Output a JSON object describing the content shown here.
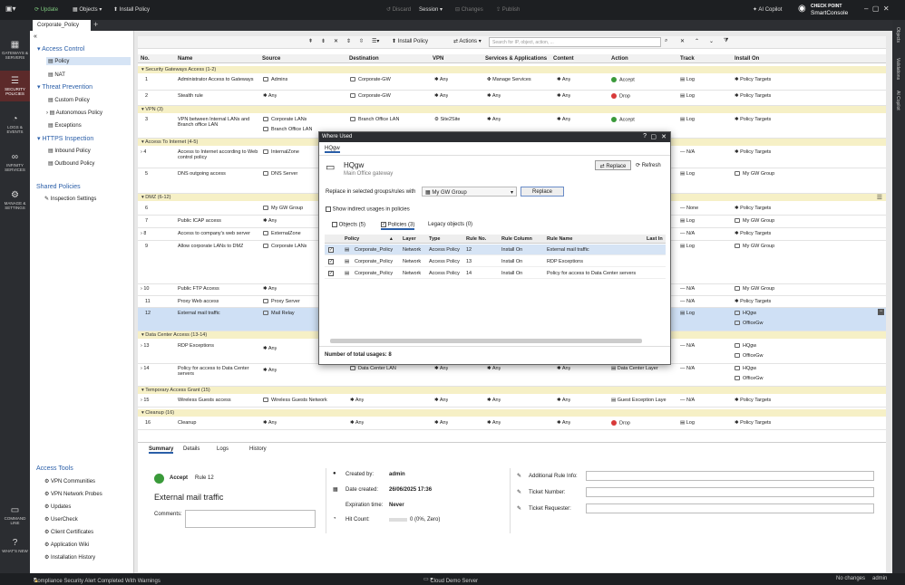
{
  "topbar": {
    "update": "Update",
    "objects": "Objects",
    "install_policy": "Install Policy",
    "discard": "Discard",
    "session": "Session",
    "changes": "Changes",
    "publish": "Publish",
    "ai_copilot": "AI Copilot",
    "brand_line1": "CHECK POINT",
    "brand_line2": "SmartConsole"
  },
  "tabs": {
    "active": "Corporate_Policy",
    "add": "+"
  },
  "leftnav": [
    {
      "label": "GATEWAYS & SERVERS",
      "icon": "gateways-icon"
    },
    {
      "label": "SECURITY POLICIES",
      "icon": "policies-icon"
    },
    {
      "label": "LOGS & EVENTS",
      "icon": "logs-icon"
    },
    {
      "label": "INFINITY SERVICES",
      "icon": "infinity-icon"
    },
    {
      "label": "MANAGE & SETTINGS",
      "icon": "manage-icon"
    },
    {
      "label": "COMMAND LINE",
      "icon": "command-line-icon"
    },
    {
      "label": "WHAT'S NEW",
      "icon": "whats-new-icon"
    }
  ],
  "rightbar": {
    "objects": "Objects",
    "validations": "Validations",
    "ai": "AI Copilot"
  },
  "sidebar": {
    "access_control": "Access Control",
    "policy": "Policy",
    "nat": "NAT",
    "threat_prevention": "Threat Prevention",
    "custom_policy": "Custom Policy",
    "autonomous_policy": "Autonomous Policy",
    "exceptions": "Exceptions",
    "https_inspection": "HTTPS Inspection",
    "inbound_policy": "Inbound Policy",
    "outbound_policy": "Outbound Policy",
    "shared_policies": "Shared Policies",
    "inspection_settings": "Inspection Settings",
    "access_tools": "Access Tools",
    "tools": [
      "VPN Communities",
      "VPN Network Probes",
      "Updates",
      "UserCheck",
      "Client Certificates",
      "Application Wiki",
      "Installation History"
    ]
  },
  "toolbar": {
    "install_policy": "Install Policy",
    "actions": "Actions",
    "search_placeholder": "Search for IP, object, action, ..."
  },
  "columns": [
    "No.",
    "Name",
    "Source",
    "Destination",
    "VPN",
    "Services & Applications",
    "Content",
    "Action",
    "Track",
    "Install On"
  ],
  "sections": [
    {
      "label": "Security Gateways Access (1-2)"
    },
    {
      "label": "VPN (3)"
    },
    {
      "label": "Access To Internet (4-5)"
    },
    {
      "label": "DMZ (6-12)"
    },
    {
      "label": "Data Center Access (13-14)"
    },
    {
      "label": "Temporary Access Grant (15)"
    },
    {
      "label": "Cleanup (16)"
    }
  ],
  "rules": [
    {
      "no": "1",
      "name": "Administrator Access to Gateways",
      "src": "Admins",
      "dst": "Corporate-GW",
      "vpn": "Any",
      "svc": "Manage Services",
      "content": "Any",
      "action": "Accept",
      "track": "Log",
      "install": "Policy Targets"
    },
    {
      "no": "2",
      "name": "Stealth rule",
      "src": "Any",
      "dst": "Corporate-GW",
      "vpn": "Any",
      "svc": "Any",
      "content": "Any",
      "action": "Drop",
      "track": "Log",
      "install": "Policy Targets"
    },
    {
      "no": "3",
      "name": "VPN between Internal LANs and Branch office LAN",
      "src": "Corporate LANs",
      "src2": "Branch Office LAN",
      "dst": "Branch Office LAN",
      "dst2": "Corporate LANs",
      "vpn": "Site2Site",
      "svc": "Any",
      "content": "Any",
      "action": "Accept",
      "track": "Log",
      "install": "Policy Targets"
    },
    {
      "no": "4",
      "name": "Access to Internet according to Web control policy",
      "src": "InternalZone",
      "track": "N/A",
      "install": "Policy Targets"
    },
    {
      "no": "5",
      "name": "DNS outgoing access",
      "src": "DNS Server",
      "track": "Log",
      "install": "My GW Group"
    },
    {
      "no": "6",
      "name": "",
      "src": "My GW Group",
      "action": "",
      "track": "None",
      "install": "Policy Targets"
    },
    {
      "no": "7",
      "name": "Public ICAP access",
      "src": "Any",
      "track": "Log",
      "install": "My GW Group"
    },
    {
      "no": "8",
      "name": "Access to company's web server",
      "src": "ExternalZone",
      "track": "N/A",
      "install": "Policy Targets"
    },
    {
      "no": "9",
      "name": "Allow corporate LANs to DMZ",
      "src": "Corporate LANs",
      "track": "Log",
      "install": "My GW Group"
    },
    {
      "no": "10",
      "name": "Public FTP Access",
      "src": "Any",
      "track": "N/A",
      "install": "My GW Group"
    },
    {
      "no": "11",
      "name": "Proxy Web access",
      "src": "Proxy Server",
      "track": "N/A",
      "install": "Policy Targets"
    },
    {
      "no": "12",
      "name": "External mail traffic",
      "src": "Mail Relay",
      "track": "Log",
      "install": "HQgw",
      "install2": "OfficeGw"
    },
    {
      "no": "13",
      "name": "RDP Exceptions",
      "src": "Any",
      "track": "N/A",
      "install": "HQgw",
      "install2": "OfficeGw"
    },
    {
      "no": "14",
      "name": "Policy for access to Data Center servers",
      "src": "Any",
      "dst": "Data Center LAN",
      "vpn": "Any",
      "svc": "Any",
      "content": "Any",
      "action": "Data Center Layer",
      "track": "N/A",
      "install": "HQgw",
      "install2": "OfficeGw"
    },
    {
      "no": "15",
      "name": "Wireless Guests access",
      "src": "Wireless Guests Network",
      "dst": "Any",
      "vpn": "Any",
      "svc": "Any",
      "content": "Any",
      "action": "Guest Exception Laye",
      "track": "N/A",
      "install": "Policy Targets"
    },
    {
      "no": "16",
      "name": "Cleanup",
      "src": "Any",
      "dst": "Any",
      "vpn": "Any",
      "svc": "Any",
      "content": "Any",
      "action": "Drop",
      "track": "Log",
      "install": "Policy Targets"
    }
  ],
  "bottom": {
    "tabs": [
      "Summary",
      "Details",
      "Logs",
      "History"
    ],
    "action": "Accept",
    "rule": "Rule 12",
    "name": "External mail traffic",
    "comments": "Comments:",
    "created_by_label": "Created by:",
    "created_by": "admin",
    "date_label": "Date created:",
    "date": "26/06/2025 17:36",
    "expiration_label": "Expiration time:",
    "expiration": "Never",
    "hit_label": "Hit Count:",
    "hit": "0 (0%, Zero)",
    "info_label": "Additional Rule Info:",
    "ticket_no": "Ticket Number:",
    "ticket_req": "Ticket Requester:"
  },
  "dialog": {
    "title": "Where Used",
    "tab": "HQgw",
    "obj_name": "HQgw",
    "obj_type": "Main Office gateway",
    "replace": "Replace",
    "refresh": "Refresh",
    "replace_label": "Replace in selected groups/rules with",
    "replace_value": "My GW Group",
    "replace_btn": "Replace",
    "show_indirect": "Show indirect usages in policies",
    "tabs": [
      "Objects (5)",
      "Policies (3)",
      "Legacy objects (0)"
    ],
    "cols": [
      "Policy",
      "Layer",
      "Type",
      "Rule No.",
      "Rule Column",
      "Rule Name",
      "Last In"
    ],
    "rows": [
      {
        "policy": "Corporate_Policy",
        "layer": "Network",
        "type": "Access Policy",
        "rule": "12",
        "col": "Install On",
        "name": "External mail traffic"
      },
      {
        "policy": "Corporate_Policy",
        "layer": "Network",
        "type": "Access Policy",
        "rule": "13",
        "col": "Install On",
        "name": "RDP Exceptions"
      },
      {
        "policy": "Corporate_Policy",
        "layer": "Network",
        "type": "Access Policy",
        "rule": "14",
        "col": "Install On",
        "name": "Policy for access to Data Center servers"
      }
    ],
    "total": "Number of total usages: 8"
  },
  "status": {
    "alert": "Compliance Security Alert Completed With Warnings",
    "server": "Cloud Demo Server",
    "changes": "No changes",
    "user": "admin"
  },
  "colors": {
    "accent": "#2a5ea8",
    "accept": "#3a9a3a",
    "drop": "#d83a3a",
    "section": "#f6f0c6"
  }
}
